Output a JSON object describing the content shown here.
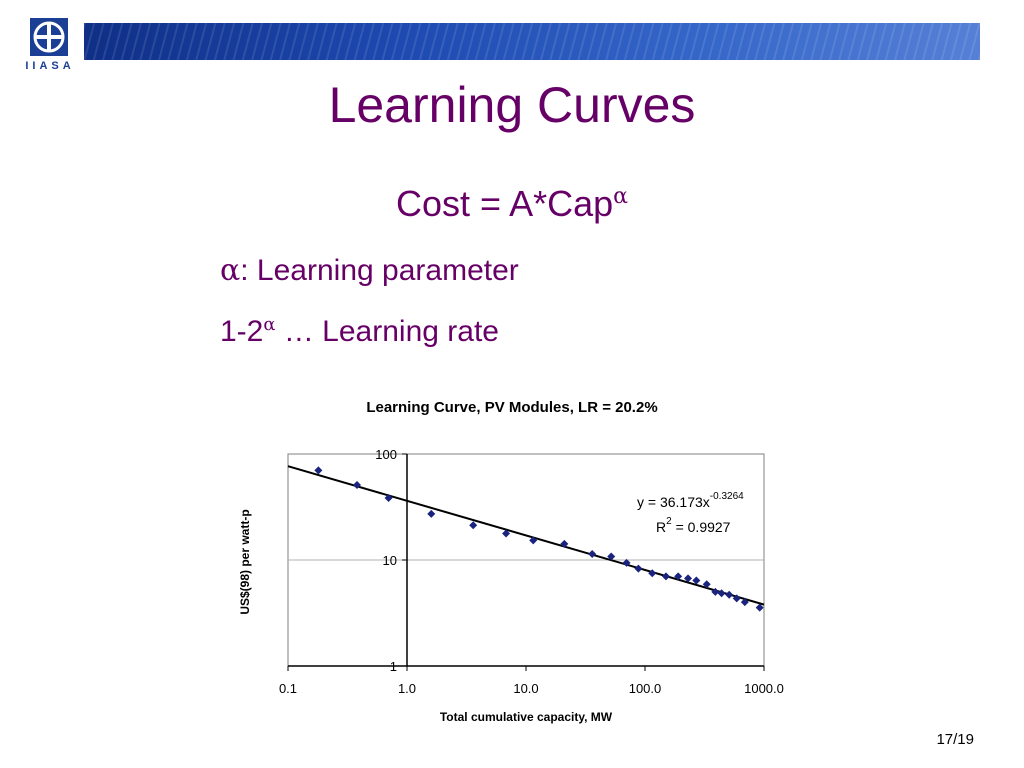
{
  "logo": {
    "text": "IIASA"
  },
  "slide": {
    "title": "Learning Curves",
    "formula": "Cost = A*Cap",
    "formula_sup": "α",
    "alpha_symbol": "α",
    "line1_rest": ": Learning parameter",
    "line2_prefix": "1-2",
    "line2_sup": "α",
    "line2_rest": " … Learning rate",
    "page_number": "17/19"
  },
  "chart_data": {
    "type": "scatter",
    "title": "Learning Curve, PV Modules, LR = 20.2%",
    "xlabel": "Total cumulative capacity, MW",
    "ylabel": "US$(98) per watt-p",
    "x_scale": "log",
    "y_scale": "log",
    "xlim": [
      0.1,
      1000
    ],
    "ylim": [
      1,
      100
    ],
    "x_ticks": [
      "0.1",
      "1.0",
      "10.0",
      "100.0",
      "1000.0"
    ],
    "y_ticks": [
      "1",
      "10",
      "100"
    ],
    "gridlines": "horizontal at 10",
    "marker_color": "#1a237e",
    "series": [
      {
        "points": [
          [
            0.18,
            70
          ],
          [
            0.38,
            51
          ],
          [
            0.7,
            38.5
          ],
          [
            1.6,
            27.2
          ],
          [
            3.6,
            21.3
          ],
          [
            6.8,
            17.8
          ],
          [
            11.5,
            15.3
          ],
          [
            21,
            14.2
          ],
          [
            36,
            11.4
          ],
          [
            52,
            10.8
          ],
          [
            70,
            9.4
          ],
          [
            88,
            8.3
          ],
          [
            115,
            7.5
          ],
          [
            150,
            7.0
          ],
          [
            190,
            7.0
          ],
          [
            230,
            6.7
          ],
          [
            270,
            6.4
          ],
          [
            330,
            5.9
          ],
          [
            390,
            5.0
          ],
          [
            440,
            4.85
          ],
          [
            510,
            4.7
          ],
          [
            590,
            4.35
          ],
          [
            690,
            4.0
          ],
          [
            920,
            3.55
          ]
        ]
      }
    ],
    "trendline": {
      "type": "power",
      "A": 36.173,
      "exponent": -0.3264,
      "r_squared": "0.9927"
    },
    "equation_text": "y = 36.173x",
    "equation_sup": "-0.3264",
    "r2_prefix": "R",
    "r2_sup": "2",
    "r2_rest": " = 0.9927"
  }
}
